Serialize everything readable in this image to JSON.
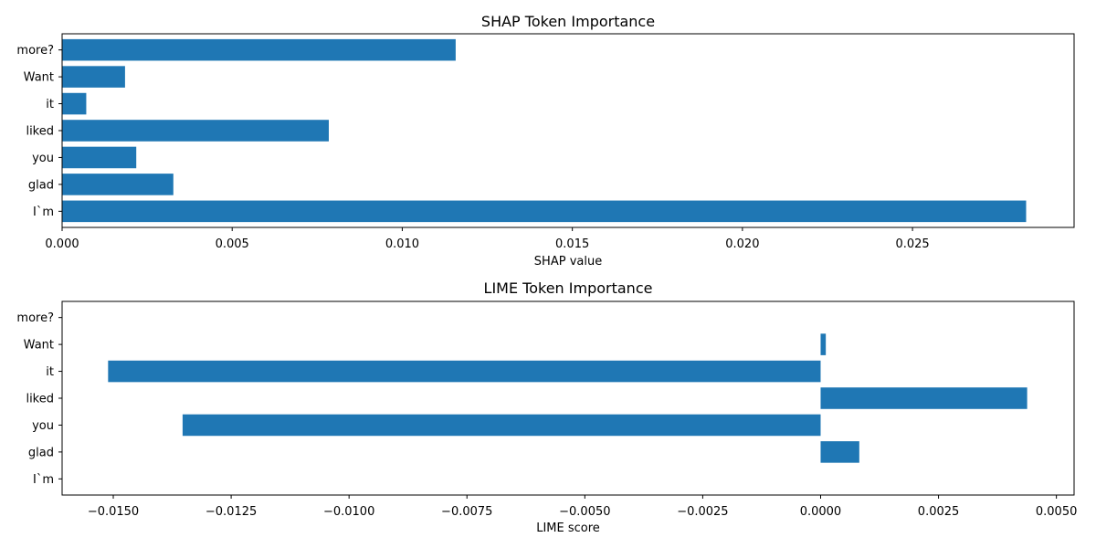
{
  "chart_data": [
    {
      "type": "bar",
      "orientation": "horizontal",
      "title": "SHAP Token Importance",
      "xlabel": "SHAP value",
      "ylabel": "",
      "categories": [
        "I`m",
        "glad",
        "you",
        "liked",
        "it",
        "Want",
        "more?"
      ],
      "values": [
        0.02834,
        0.00327,
        0.00218,
        0.00784,
        0.00071,
        0.00185,
        0.01157
      ],
      "xlim": [
        0.0,
        0.02975
      ],
      "xticks": [
        0.0,
        0.005,
        0.01,
        0.015,
        0.02,
        0.025
      ],
      "xtick_labels": [
        "0.000",
        "0.005",
        "0.010",
        "0.015",
        "0.020",
        "0.025"
      ],
      "grid": false,
      "bar_color": "#1f77b4"
    },
    {
      "type": "bar",
      "orientation": "horizontal",
      "title": "LIME Token Importance",
      "xlabel": "LIME score",
      "ylabel": "",
      "categories": [
        "I`m",
        "glad",
        "you",
        "liked",
        "it",
        "Want",
        "more?"
      ],
      "values": [
        0.0,
        0.00082,
        -0.01353,
        0.00438,
        -0.01511,
        0.00011,
        0.0
      ],
      "xlim": [
        -0.016085,
        0.005375
      ],
      "xticks": [
        -0.015,
        -0.0125,
        -0.01,
        -0.0075,
        -0.005,
        -0.0025,
        0.0,
        0.0025,
        0.005
      ],
      "xtick_labels": [
        "−0.0150",
        "−0.0125",
        "−0.0100",
        "−0.0075",
        "−0.0050",
        "−0.0025",
        "0.0000",
        "0.0025",
        "0.0050"
      ],
      "grid": false,
      "bar_color": "#1f77b4"
    }
  ]
}
